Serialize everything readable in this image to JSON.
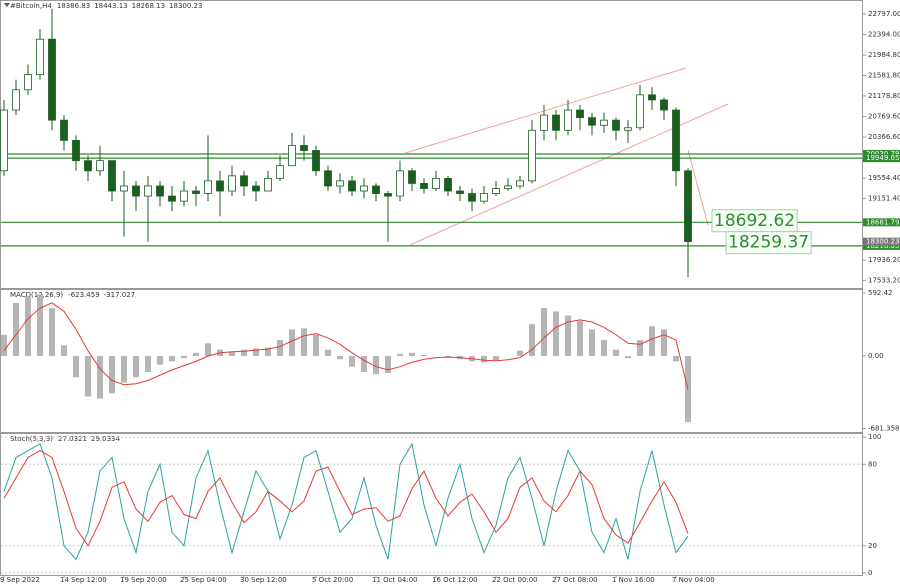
{
  "chart_data": [
    {
      "type": "candlestick",
      "title": "#Bitcoin,H4",
      "header_values": [
        18386.83,
        18443.13,
        18268.13,
        18300.23
      ],
      "categories": [
        "9 Sep 2022",
        null,
        null,
        null,
        null,
        "14 Sep 12:00",
        null,
        null,
        null,
        null,
        "19 Sep 20:00",
        null,
        null,
        null,
        null,
        "25 Sep 04:00",
        null,
        null,
        null,
        null,
        "30 Sep 12:00",
        null,
        null,
        null,
        null,
        null,
        "5 Oct 20:00",
        null,
        null,
        null,
        null,
        "11 Oct 04:00",
        null,
        null,
        null,
        null,
        "16 Oct 12:00",
        null,
        null,
        null,
        null,
        "22 Oct 00:00",
        null,
        null,
        null,
        null,
        "27 Oct 08:00",
        null,
        null,
        null,
        null,
        "1 Nov 16:00",
        null,
        null,
        null,
        null,
        "7 Nov 04:00",
        null
      ],
      "open": [
        19700,
        20900,
        21300,
        21600,
        22300,
        20700,
        20300,
        19900,
        19700,
        19900,
        19300,
        19400,
        19200,
        19400,
        19200,
        19100,
        19300,
        19250,
        19500,
        19300,
        19600,
        19400,
        19300,
        19550,
        19800,
        20200,
        20100,
        19700,
        19400,
        19500,
        19300,
        19400,
        19250,
        19200,
        19700,
        19450,
        19350,
        19550,
        19300,
        19250,
        19100,
        19250,
        19350,
        19400,
        19500,
        20500,
        20800,
        20500,
        20900,
        20750,
        20600,
        20700,
        20500,
        20550,
        21200,
        21100,
        20900,
        19700
      ],
      "high": [
        21100,
        21500,
        21800,
        22500,
        22900,
        20800,
        20400,
        20000,
        20200,
        19900,
        19700,
        19500,
        19600,
        19500,
        19400,
        19500,
        19400,
        20400,
        19700,
        19800,
        19700,
        19500,
        19700,
        20000,
        20450,
        20400,
        20200,
        19800,
        19650,
        19600,
        19550,
        19450,
        19300,
        19900,
        19750,
        19550,
        19700,
        19600,
        19400,
        19350,
        19400,
        19500,
        19550,
        19600,
        20700,
        21000,
        20900,
        21100,
        21000,
        20850,
        20850,
        20750,
        20700,
        21400,
        21350,
        21150,
        20950,
        19750
      ],
      "low": [
        19600,
        20800,
        21200,
        21500,
        20500,
        20100,
        19700,
        19500,
        19600,
        19100,
        18400,
        18900,
        18300,
        19000,
        18900,
        19000,
        19000,
        19100,
        18800,
        19200,
        19200,
        19100,
        19300,
        19500,
        19800,
        19900,
        19600,
        19300,
        19250,
        19200,
        19150,
        19100,
        18300,
        19100,
        19300,
        19250,
        19300,
        19200,
        19100,
        18900,
        19050,
        19200,
        19300,
        19350,
        19450,
        20300,
        20300,
        20400,
        20500,
        20400,
        20450,
        20300,
        20250,
        20500,
        20900,
        20700,
        19400,
        17600
      ],
      "close": [
        20900,
        21300,
        21600,
        22300,
        20700,
        20300,
        19900,
        19700,
        19900,
        19300,
        19400,
        19200,
        19400,
        19200,
        19100,
        19300,
        19250,
        19500,
        19300,
        19600,
        19400,
        19300,
        19550,
        19800,
        20200,
        20100,
        19700,
        19400,
        19500,
        19300,
        19400,
        19250,
        19200,
        19700,
        19450,
        19350,
        19550,
        19300,
        19250,
        19100,
        19250,
        19350,
        19400,
        19500,
        20500,
        20800,
        20500,
        20900,
        20750,
        20600,
        20700,
        20500,
        20550,
        21200,
        21100,
        20900,
        19700,
        18300.23
      ],
      "up_color": "#ffffff",
      "down_color": "#1b5e20",
      "wick_color": "#1b5e20",
      "ylim": [
        17384,
        23074
      ],
      "yticks": [
        {
          "value": 22797,
          "label": "22797.00"
        },
        {
          "value": 22394,
          "label": "22394.00"
        },
        {
          "value": 21984.8,
          "label": "21984.80"
        },
        {
          "value": 21581.8,
          "label": "21581.80"
        },
        {
          "value": 21178.8,
          "label": "21178.80"
        },
        {
          "value": 20769.6,
          "label": "20769.60"
        },
        {
          "value": 20366.6,
          "label": "20366.60"
        },
        {
          "value": 19554.4,
          "label": "19554.40"
        },
        {
          "value": 19151.4,
          "label": "19151.40"
        },
        {
          "value": 17936.2,
          "label": "17936.20"
        },
        {
          "value": 17533.2,
          "label": "17533.20"
        }
      ],
      "levels": [
        20030.79,
        19949.65,
        18681.79,
        18216.05
      ],
      "level_color": "#2e8b2e",
      "current_price": 18300.23,
      "annotations": [
        18692.62,
        18259.37
      ]
    },
    {
      "type": "macd",
      "title": "MACD(12,26,9)",
      "header_values": [
        -623.459,
        -317.027
      ],
      "histogram": {
        "color": "#b5b5b5",
        "values": [
          200,
          500,
          560,
          580,
          450,
          100,
          -200,
          -380,
          -400,
          -350,
          -250,
          -200,
          -150,
          -80,
          -50,
          -20,
          30,
          120,
          60,
          40,
          60,
          70,
          80,
          150,
          250,
          260,
          200,
          60,
          -30,
          -100,
          -150,
          -170,
          -160,
          20,
          30,
          10,
          0,
          -10,
          -30,
          -50,
          -60,
          -40,
          0,
          50,
          300,
          450,
          420,
          380,
          330,
          250,
          150,
          60,
          -20,
          150,
          280,
          250,
          -50,
          -620
        ]
      },
      "signal": {
        "color": "#e53935",
        "values": [
          50,
          200,
          350,
          450,
          500,
          420,
          250,
          50,
          -120,
          -230,
          -270,
          -260,
          -230,
          -180,
          -130,
          -90,
          -50,
          0,
          30,
          40,
          45,
          55,
          65,
          90,
          140,
          190,
          210,
          170,
          110,
          30,
          -40,
          -100,
          -130,
          -100,
          -60,
          -30,
          -15,
          -10,
          -15,
          -25,
          -40,
          -45,
          -35,
          -15,
          60,
          170,
          270,
          320,
          340,
          320,
          270,
          200,
          120,
          110,
          160,
          200,
          150,
          -317
        ]
      },
      "ylim": [
        -714,
        630
      ],
      "yticks": [
        592.42,
        {
          "value": 0,
          "label": "0.00"
        },
        -681.358
      ]
    },
    {
      "type": "stochastic",
      "title": "Stoch(5,3,3)",
      "header_values": [
        27.0321,
        29.0334
      ],
      "main": {
        "color": "#26a69a",
        "values": [
          60,
          85,
          90,
          95,
          70,
          20,
          10,
          30,
          75,
          85,
          40,
          15,
          60,
          80,
          30,
          20,
          70,
          90,
          50,
          15,
          45,
          75,
          60,
          25,
          50,
          85,
          90,
          60,
          30,
          40,
          70,
          35,
          10,
          80,
          95,
          50,
          20,
          55,
          80,
          40,
          15,
          35,
          70,
          85,
          55,
          20,
          60,
          90,
          75,
          30,
          15,
          40,
          10,
          60,
          90,
          50,
          15,
          27
        ]
      },
      "signal": {
        "color": "#e53935",
        "values": [
          55,
          70,
          85,
          90,
          85,
          60,
          33,
          20,
          38,
          63,
          67,
          47,
          38,
          52,
          57,
          43,
          40,
          60,
          70,
          52,
          37,
          45,
          60,
          53,
          45,
          53,
          75,
          78,
          60,
          43,
          47,
          48,
          38,
          42,
          62,
          75,
          55,
          42,
          52,
          58,
          45,
          30,
          40,
          63,
          70,
          53,
          45,
          57,
          75,
          65,
          40,
          28,
          22,
          37,
          53,
          67,
          52,
          29
        ]
      },
      "ylim": [
        -1.5,
        103
      ],
      "yticks": [
        100,
        80,
        20,
        0
      ]
    }
  ]
}
